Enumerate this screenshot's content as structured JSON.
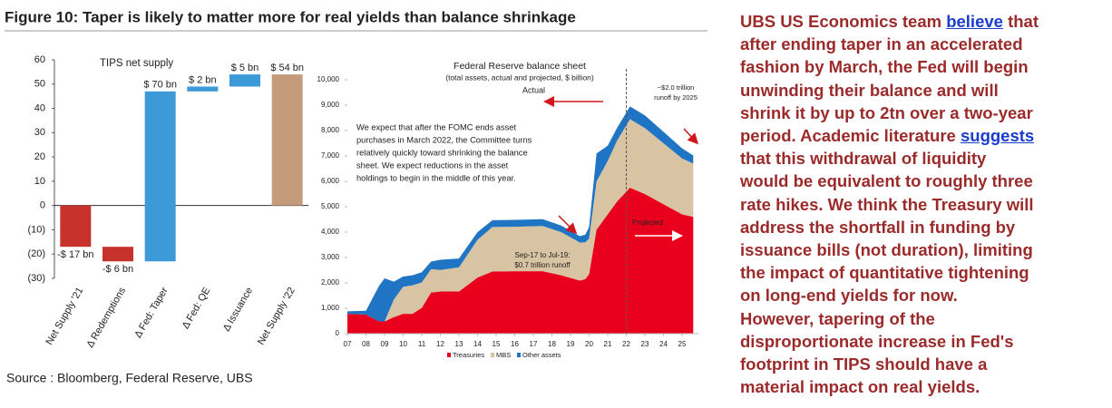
{
  "figure_title": "Figure 10: Taper is likely to matter more for real yields than balance shrinkage",
  "source": "Source : Bloomberg, Federal Reserve, UBS",
  "commentary": [
    [
      "UBS US Economics team ",
      {
        "link": "believe"
      },
      " that"
    ],
    [
      "after ending taper in an accelerated"
    ],
    [
      "fashion by March, the Fed will begin"
    ],
    [
      "unwinding their balance and will"
    ],
    [
      "shrink it by up to 2tn over a two-year"
    ],
    [
      "period. Academic literature ",
      {
        "link": "suggests"
      }
    ],
    [
      "that this withdrawal of liquidity"
    ],
    [
      "would be equivalent to roughly three"
    ],
    [
      "rate hikes. We think the Treasury will"
    ],
    [
      "address the shortfall in funding by"
    ],
    [
      "issuance bills (not duration), limiting"
    ],
    [
      "the impact of quantitative tightening"
    ],
    [
      "on long-end yields for now."
    ],
    [
      "However, tapering of the"
    ],
    [
      "disproportionate increase in Fed's"
    ],
    [
      "footprint in TIPS should have a"
    ],
    [
      "material impact on real yields."
    ]
  ],
  "chart_data": [
    {
      "type": "waterfall",
      "title": "TIPS net supply",
      "categories": [
        "Net Supply '21",
        "Δ Redemptions",
        "Δ Fed: Taper",
        "Δ Fed: QE",
        "Δ Issuance",
        "Net Supply '22"
      ],
      "values": [
        -17,
        -6,
        70,
        2,
        5,
        54
      ],
      "value_labels": [
        "-$ 17 bn",
        "-$ 6 bn",
        "$ 70 bn",
        "$ 2 bn",
        "$ 5 bn",
        "$ 54 bn"
      ],
      "totals": [
        true,
        false,
        false,
        false,
        false,
        true
      ],
      "colors": [
        "#c8322c",
        "#c8322c",
        "#3d9ad8",
        "#3d9ad8",
        "#3d9ad8",
        "#c49c7c"
      ],
      "ylim": [
        -30,
        60
      ],
      "yticks": [
        {
          "value": -30,
          "label": "(30)"
        },
        {
          "value": -20,
          "label": "(20)"
        },
        {
          "value": -10,
          "label": "(10)"
        },
        0,
        10,
        20,
        30,
        40,
        50,
        60
      ]
    },
    {
      "type": "stacked_area",
      "title": "Federal Reserve balance sheet",
      "subtitle": "(total assets, actual and projected, $ billion)",
      "x": [
        2007,
        2008,
        2008.7,
        2009,
        2009.5,
        2010,
        2010.5,
        2011,
        2011.5,
        2012,
        2013,
        2014,
        2014.8,
        2016,
        2017.5,
        2018.5,
        2019.5,
        2019.8,
        2020,
        2020.4,
        2021,
        2021.5,
        2022.2,
        2023,
        2024,
        2025,
        2025.6
      ],
      "series": [
        {
          "name": "Treasuries",
          "color": "#e8001c",
          "values": [
            780,
            750,
            480,
            480,
            650,
            780,
            780,
            1020,
            1620,
            1660,
            1660,
            2210,
            2450,
            2460,
            2460,
            2300,
            2090,
            2150,
            2350,
            4100,
            4700,
            5200,
            5750,
            5500,
            5100,
            4700,
            4600
          ]
        },
        {
          "name": "MBS",
          "color": "#d8c3a3",
          "values": [
            0,
            0,
            0,
            0,
            700,
            1070,
            1120,
            1000,
            920,
            850,
            950,
            1490,
            1750,
            1750,
            1780,
            1700,
            1500,
            1450,
            1400,
            1900,
            2100,
            2400,
            2700,
            2600,
            2400,
            2200,
            2100
          ]
        },
        {
          "name": "Other assets",
          "color": "#1f74c4",
          "values": [
            100,
            150,
            1400,
            1700,
            700,
            400,
            400,
            400,
            300,
            400,
            350,
            300,
            270,
            270,
            270,
            260,
            250,
            300,
            450,
            1100,
            600,
            500,
            500,
            500,
            450,
            400,
            320
          ]
        }
      ],
      "projection_start": 2022,
      "xlim": [
        2007,
        2025.9
      ],
      "xticks": [
        {
          "value": 2007,
          "label": "07"
        },
        {
          "value": 2008,
          "label": "08"
        },
        {
          "value": 2009,
          "label": "09"
        },
        {
          "value": 2010,
          "label": "10"
        },
        {
          "value": 2011,
          "label": "11"
        },
        {
          "value": 2012,
          "label": "12"
        },
        {
          "value": 2013,
          "label": "13"
        },
        {
          "value": 2014,
          "label": "14"
        },
        {
          "value": 2015,
          "label": "15"
        },
        {
          "value": 2016,
          "label": "16"
        },
        {
          "value": 2017,
          "label": "17"
        },
        {
          "value": 2018,
          "label": "18"
        },
        {
          "value": 2019,
          "label": "19"
        },
        {
          "value": 2020,
          "label": "20"
        },
        {
          "value": 2021,
          "label": "21"
        },
        {
          "value": 2022,
          "label": "22"
        },
        {
          "value": 2023,
          "label": "23"
        },
        {
          "value": 2024,
          "label": "24"
        },
        {
          "value": 2025,
          "label": "25"
        }
      ],
      "ylim": [
        0,
        10000
      ],
      "yticks": [
        0,
        {
          "value": 1000,
          "label": "1,000"
        },
        {
          "value": 2000,
          "label": "2,000"
        },
        {
          "value": 3000,
          "label": "3,000"
        },
        {
          "value": 4000,
          "label": "4,000"
        },
        {
          "value": 5000,
          "label": "5,000"
        },
        {
          "value": 6000,
          "label": "6,000"
        },
        {
          "value": 7000,
          "label": "7,000"
        },
        {
          "value": 8000,
          "label": "8,000"
        },
        {
          "value": 9000,
          "label": "9,000"
        },
        {
          "value": 10000,
          "label": "10,000"
        }
      ],
      "annotations": {
        "actual": "Actual",
        "runoff_2025": [
          "~$2.0 trillion",
          "runoff by 2025"
        ],
        "expectation": [
          "We expect that after the FOMC ends asset",
          "purchases in March 2022, the Committee turns",
          "relatively quickly toward shrinking the balance",
          "sheet. We expect reductions in the asset",
          "holdings to begin in the middle of this year."
        ],
        "runoff_2017": [
          "Sep-17 to Jul-19:",
          "$0.7 trillion runoff"
        ],
        "projected": "Projected"
      }
    }
  ]
}
